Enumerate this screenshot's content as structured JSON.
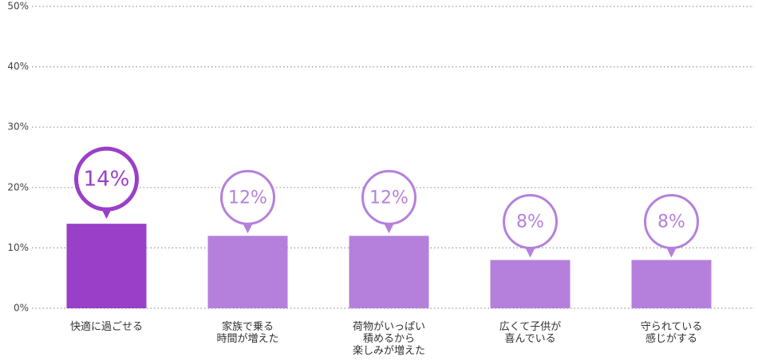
{
  "chart_data": {
    "type": "bar",
    "categories": [
      "快適に過ごせる",
      "家族で乗る\n時間が増えた",
      "荷物がいっぱい\n積めるから\n楽しみが増えた",
      "広くて子供が\n喜んでいる",
      "守られている\n感じがする"
    ],
    "values": [
      14,
      12,
      12,
      8,
      8
    ],
    "value_labels": [
      "14%",
      "12%",
      "12%",
      "8%",
      "8%"
    ],
    "colors": [
      "#9a3fc8",
      "#b580dc",
      "#b580dc",
      "#b580dc",
      "#b580dc"
    ],
    "ylim": [
      0,
      50
    ],
    "yticks": [
      {
        "value": 0,
        "label": "0%"
      },
      {
        "value": 10,
        "label": "10%"
      },
      {
        "value": 20,
        "label": "20%"
      },
      {
        "value": 30,
        "label": "30%"
      },
      {
        "value": 40,
        "label": "40%"
      },
      {
        "value": 50,
        "label": "50%"
      }
    ],
    "grid": true
  }
}
